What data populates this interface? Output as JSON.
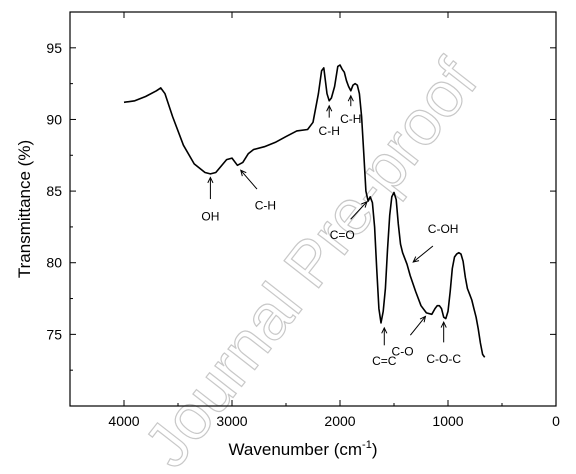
{
  "chart_data": {
    "type": "line",
    "xlabel": "Wavenumber (cm",
    "xlabel_sup": "-1",
    "xlabel_tail": ")",
    "ylabel": "Transmittance (%)",
    "xlim": [
      4500,
      0
    ],
    "ylim": [
      70,
      97.5
    ],
    "x_ticks": [
      4000,
      3000,
      2000,
      1000,
      0
    ],
    "y_ticks": [
      75,
      80,
      85,
      90,
      95
    ],
    "grid": false,
    "series": [
      {
        "x": [
          4000,
          3900,
          3800,
          3700,
          3660,
          3620,
          3550,
          3450,
          3350,
          3250,
          3200,
          3150,
          3050,
          3000,
          2950,
          2900,
          2850,
          2800,
          2700,
          2600,
          2500,
          2400,
          2300,
          2250,
          2200,
          2170,
          2150,
          2120,
          2100,
          2080,
          2050,
          2020,
          2000,
          1980,
          1960,
          1940,
          1920,
          1900,
          1880,
          1860,
          1840,
          1820,
          1800,
          1780,
          1760,
          1740,
          1720,
          1700,
          1680,
          1660,
          1640,
          1620,
          1600,
          1580,
          1560,
          1540,
          1520,
          1500,
          1480,
          1460,
          1440,
          1420,
          1400,
          1380,
          1350,
          1300,
          1250,
          1200,
          1150,
          1120,
          1100,
          1080,
          1060,
          1040,
          1020,
          1000,
          980,
          960,
          940,
          920,
          900,
          880,
          860,
          840,
          820,
          800,
          780,
          760,
          740,
          720,
          700,
          680,
          660
        ],
        "y": [
          91.2,
          91.3,
          91.6,
          92.0,
          92.2,
          91.8,
          90.2,
          88.2,
          86.9,
          86.3,
          86.2,
          86.3,
          87.2,
          87.3,
          86.8,
          87.0,
          87.6,
          87.9,
          88.1,
          88.4,
          88.8,
          89.2,
          89.3,
          89.8,
          91.8,
          93.4,
          93.6,
          91.8,
          91.3,
          91.5,
          92.3,
          93.7,
          93.8,
          93.5,
          93.3,
          92.7,
          92.3,
          92.0,
          92.4,
          92.5,
          92.4,
          91.8,
          90.2,
          87.6,
          85.0,
          84.3,
          84.6,
          84.2,
          82.5,
          79.6,
          76.8,
          75.8,
          76.6,
          78.2,
          80.9,
          83.3,
          84.6,
          84.9,
          84.4,
          82.7,
          81.3,
          80.7,
          80.3,
          79.9,
          79.1,
          78.0,
          77.0,
          76.5,
          76.4,
          76.8,
          77.0,
          77.0,
          76.8,
          76.2,
          76.1,
          76.6,
          78.0,
          79.6,
          80.4,
          80.6,
          80.7,
          80.6,
          80.1,
          79.0,
          78.2,
          77.8,
          77.4,
          76.8,
          76.2,
          75.4,
          74.4,
          73.6,
          73.4
        ]
      }
    ],
    "annotations": [
      {
        "text": "OH",
        "x": 3200,
        "y": 86.3
      },
      {
        "text": "C-H",
        "x": 2950,
        "y": 86.8
      },
      {
        "text": "C-H",
        "x": 2100,
        "y": 91.3
      },
      {
        "text": "C-H",
        "x": 1900,
        "y": 92.0
      },
      {
        "text": "C=O",
        "x": 1720,
        "y": 84.6
      },
      {
        "text": "C=C",
        "x": 1590,
        "y": 75.8
      },
      {
        "text": "C-OH",
        "x": 1360,
        "y": 79.7
      },
      {
        "text": "C-O",
        "x": 1180,
        "y": 76.6
      },
      {
        "text": "C-O-C",
        "x": 1040,
        "y": 76.2
      }
    ],
    "watermark": "Journal Pre-proof"
  }
}
